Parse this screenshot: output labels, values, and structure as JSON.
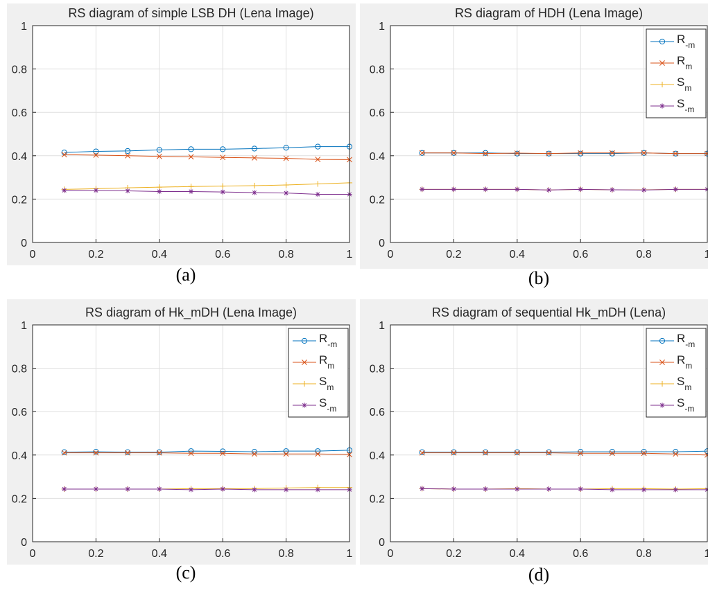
{
  "chart_data": [
    {
      "type": "line",
      "title": "RS diagram of simple LSB DH (Lena Image)",
      "caption": "(a)",
      "xlim": [
        0,
        1
      ],
      "ylim": [
        0,
        1
      ],
      "xticks": [
        "0",
        "0.2",
        "0.4",
        "0.6",
        "0.8",
        "1"
      ],
      "yticks": [
        "0",
        "0.2",
        "0.4",
        "0.6",
        "0.8",
        "1"
      ],
      "grid": true,
      "legend": null,
      "x": [
        0.1,
        0.2,
        0.3,
        0.4,
        0.5,
        0.6,
        0.7,
        0.8,
        0.9,
        1.0
      ],
      "series": [
        {
          "key": "r-neg-m",
          "marker": "o",
          "color": "#0072BD",
          "values": [
            0.415,
            0.42,
            0.422,
            0.427,
            0.43,
            0.43,
            0.433,
            0.437,
            0.442,
            0.442
          ]
        },
        {
          "key": "r-m",
          "marker": "x",
          "color": "#D95319",
          "values": [
            0.405,
            0.403,
            0.4,
            0.397,
            0.395,
            0.392,
            0.39,
            0.388,
            0.383,
            0.382
          ]
        },
        {
          "key": "s-m",
          "marker": "+",
          "color": "#EDB120",
          "values": [
            0.245,
            0.248,
            0.252,
            0.255,
            0.258,
            0.26,
            0.262,
            0.265,
            0.27,
            0.275
          ]
        },
        {
          "key": "s-neg-m",
          "marker": "*",
          "color": "#7E2F8E",
          "values": [
            0.24,
            0.24,
            0.238,
            0.235,
            0.235,
            0.233,
            0.23,
            0.228,
            0.222,
            0.222
          ]
        }
      ]
    },
    {
      "type": "line",
      "title": "RS diagram of HDH (Lena Image)",
      "caption": "(b)",
      "xlim": [
        0,
        1
      ],
      "ylim": [
        0,
        1
      ],
      "xticks": [
        "0",
        "0.2",
        "0.4",
        "0.6",
        "0.8",
        "1"
      ],
      "yticks": [
        "0",
        "0.2",
        "0.4",
        "0.6",
        "0.8",
        "1"
      ],
      "grid": true,
      "legend": "top-right",
      "x": [
        0.1,
        0.2,
        0.3,
        0.4,
        0.5,
        0.6,
        0.7,
        0.8,
        0.9,
        1.0
      ],
      "series": [
        {
          "key": "r-neg-m",
          "marker": "o",
          "color": "#0072BD",
          "values": [
            0.413,
            0.413,
            0.413,
            0.41,
            0.41,
            0.41,
            0.41,
            0.413,
            0.41,
            0.41
          ]
        },
        {
          "key": "r-m",
          "marker": "x",
          "color": "#D95319",
          "values": [
            0.413,
            0.413,
            0.41,
            0.412,
            0.41,
            0.413,
            0.413,
            0.413,
            0.41,
            0.41
          ]
        },
        {
          "key": "s-m",
          "marker": "+",
          "color": "#EDB120",
          "values": [
            0.245,
            0.245,
            0.245,
            0.245,
            0.242,
            0.245,
            0.243,
            0.243,
            0.245,
            0.245
          ]
        },
        {
          "key": "s-neg-m",
          "marker": "*",
          "color": "#7E2F8E",
          "values": [
            0.245,
            0.245,
            0.245,
            0.245,
            0.242,
            0.245,
            0.243,
            0.242,
            0.245,
            0.245
          ]
        }
      ]
    },
    {
      "type": "line",
      "title": "RS diagram of Hk_mDH (Lena Image)",
      "caption": "(c)",
      "xlim": [
        0,
        1
      ],
      "ylim": [
        0,
        1
      ],
      "xticks": [
        "0",
        "0.2",
        "0.4",
        "0.6",
        "0.8",
        "1"
      ],
      "yticks": [
        "0",
        "0.2",
        "0.4",
        "0.6",
        "0.8",
        "1"
      ],
      "grid": true,
      "legend": "top-right",
      "x": [
        0.1,
        0.2,
        0.3,
        0.4,
        0.5,
        0.6,
        0.7,
        0.8,
        0.9,
        1.0
      ],
      "series": [
        {
          "key": "r-neg-m",
          "marker": "o",
          "color": "#0072BD",
          "values": [
            0.413,
            0.415,
            0.413,
            0.413,
            0.418,
            0.417,
            0.415,
            0.418,
            0.418,
            0.422
          ]
        },
        {
          "key": "r-m",
          "marker": "x",
          "color": "#D95319",
          "values": [
            0.41,
            0.41,
            0.41,
            0.41,
            0.408,
            0.408,
            0.405,
            0.405,
            0.405,
            0.402
          ]
        },
        {
          "key": "s-m",
          "marker": "+",
          "color": "#EDB120",
          "values": [
            0.243,
            0.243,
            0.243,
            0.243,
            0.245,
            0.245,
            0.245,
            0.248,
            0.25,
            0.25
          ]
        },
        {
          "key": "s-neg-m",
          "marker": "*",
          "color": "#7E2F8E",
          "values": [
            0.243,
            0.243,
            0.243,
            0.243,
            0.24,
            0.243,
            0.24,
            0.24,
            0.24,
            0.24
          ]
        }
      ]
    },
    {
      "type": "line",
      "title": "RS diagram of sequential Hk_mDH (Lena)",
      "caption": "(d)",
      "xlim": [
        0,
        1
      ],
      "ylim": [
        0,
        1
      ],
      "xticks": [
        "0",
        "0.2",
        "0.4",
        "0.6",
        "0.8",
        "1"
      ],
      "yticks": [
        "0",
        "0.2",
        "0.4",
        "0.6",
        "0.8",
        "1"
      ],
      "grid": true,
      "legend": "top-right",
      "x": [
        0.1,
        0.2,
        0.3,
        0.4,
        0.5,
        0.6,
        0.7,
        0.8,
        0.9,
        1.0
      ],
      "series": [
        {
          "key": "r-neg-m",
          "marker": "o",
          "color": "#0072BD",
          "values": [
            0.413,
            0.413,
            0.413,
            0.413,
            0.413,
            0.415,
            0.415,
            0.415,
            0.415,
            0.418
          ]
        },
        {
          "key": "r-m",
          "marker": "x",
          "color": "#D95319",
          "values": [
            0.41,
            0.41,
            0.41,
            0.41,
            0.41,
            0.408,
            0.408,
            0.408,
            0.405,
            0.4
          ]
        },
        {
          "key": "s-m",
          "marker": "+",
          "color": "#EDB120",
          "values": [
            0.245,
            0.243,
            0.243,
            0.245,
            0.243,
            0.243,
            0.245,
            0.245,
            0.243,
            0.245
          ]
        },
        {
          "key": "s-neg-m",
          "marker": "*",
          "color": "#7E2F8E",
          "values": [
            0.245,
            0.243,
            0.243,
            0.243,
            0.243,
            0.243,
            0.24,
            0.24,
            0.24,
            0.24
          ]
        }
      ]
    }
  ],
  "legend_entries": [
    {
      "key": "r-neg-m",
      "base": "R",
      "sub": "-m"
    },
    {
      "key": "r-m",
      "base": "R",
      "sub": "m"
    },
    {
      "key": "s-m",
      "base": "S",
      "sub": "m"
    },
    {
      "key": "s-neg-m",
      "base": "S",
      "sub": "-m"
    }
  ]
}
